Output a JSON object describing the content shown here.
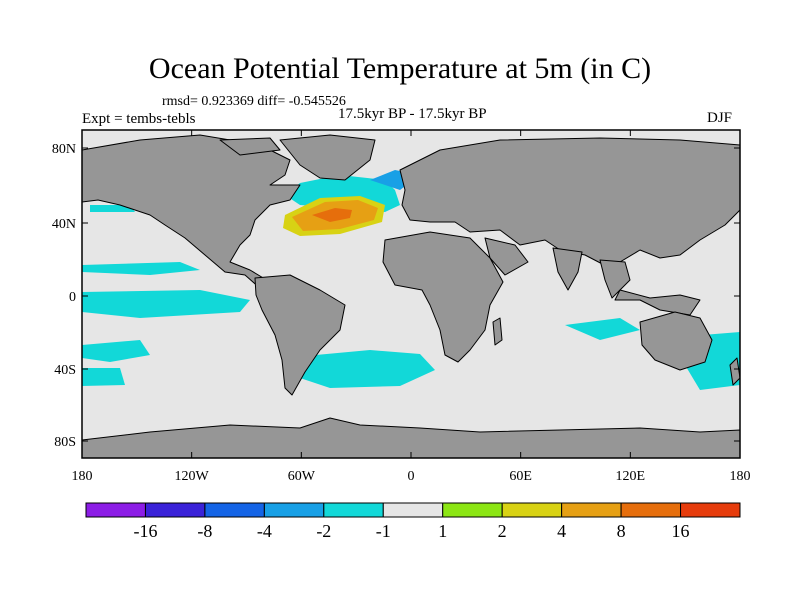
{
  "title": "Ocean Potential Temperature at 5m (in C)",
  "stats": "rmsd= 0.923369 diff= -0.545526",
  "left_label": "Expt = tembs-tebls",
  "center_label": "17.5kyr BP - 17.5kyr BP",
  "season": "DJF",
  "colors": {
    "ocean_background": "#e6e6e6",
    "land": "#969696",
    "coast": "#000000"
  },
  "map": {
    "x_ticks": [
      "180",
      "120W",
      "60W",
      "0",
      "60E",
      "120E",
      "180"
    ],
    "y_ticks": [
      "80N",
      "40N",
      "0",
      "40S",
      "80S"
    ]
  },
  "colorbar": {
    "colors": [
      "#8c1de6",
      "#3a22d8",
      "#1464e6",
      "#18a0e6",
      "#12d8d8",
      "#e6e6e6",
      "#8ce614",
      "#d8d214",
      "#e6a014",
      "#e66e0c",
      "#e63c0c"
    ],
    "labels": [
      "-16",
      "-8",
      "-4",
      "-2",
      "-1",
      "1",
      "2",
      "4",
      "8",
      "16"
    ]
  },
  "anomalies": [
    {
      "name": "north-atlantic-warm-core",
      "color": "#e66e0c"
    },
    {
      "name": "north-atlantic-warm",
      "color": "#e6a014"
    },
    {
      "name": "north-atlantic-yellow",
      "color": "#d8d214"
    },
    {
      "name": "labrador-cool",
      "color": "#12d8d8"
    },
    {
      "name": "southern-ocean-cool",
      "color": "#12d8d8"
    },
    {
      "name": "equatorial-pacific-cool",
      "color": "#12d8d8"
    }
  ]
}
